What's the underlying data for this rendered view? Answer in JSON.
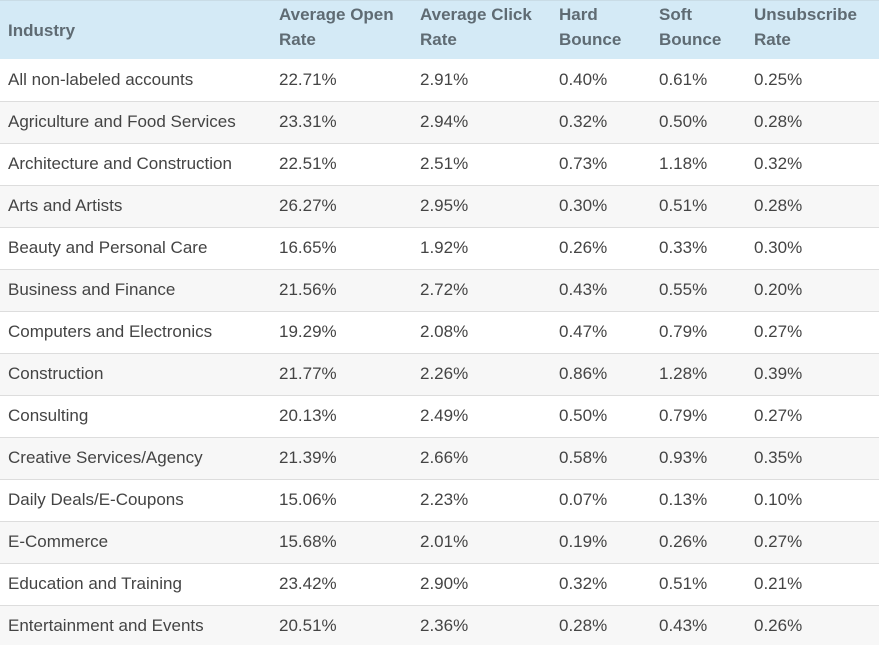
{
  "table": {
    "headers": [
      {
        "line1": "Industry",
        "line2": ""
      },
      {
        "line1": "Average Open",
        "line2": "Rate"
      },
      {
        "line1": "Average Click",
        "line2": "Rate"
      },
      {
        "line1": "Hard",
        "line2": "Bounce"
      },
      {
        "line1": "Soft",
        "line2": "Bounce"
      },
      {
        "line1": "Unsubscribe",
        "line2": "Rate"
      }
    ],
    "rows": [
      [
        "All non-labeled accounts",
        "22.71%",
        "2.91%",
        "0.40%",
        "0.61%",
        "0.25%"
      ],
      [
        "Agriculture and Food Services",
        "23.31%",
        "2.94%",
        "0.32%",
        "0.50%",
        "0.28%"
      ],
      [
        "Architecture and Construction",
        "22.51%",
        "2.51%",
        "0.73%",
        "1.18%",
        "0.32%"
      ],
      [
        "Arts and Artists",
        "26.27%",
        "2.95%",
        "0.30%",
        "0.51%",
        "0.28%"
      ],
      [
        "Beauty and Personal Care",
        "16.65%",
        "1.92%",
        "0.26%",
        "0.33%",
        "0.30%"
      ],
      [
        "Business and Finance",
        "21.56%",
        "2.72%",
        "0.43%",
        "0.55%",
        "0.20%"
      ],
      [
        "Computers and Electronics",
        "19.29%",
        "2.08%",
        "0.47%",
        "0.79%",
        "0.27%"
      ],
      [
        "Construction",
        "21.77%",
        "2.26%",
        "0.86%",
        "1.28%",
        "0.39%"
      ],
      [
        "Consulting",
        "20.13%",
        "2.49%",
        "0.50%",
        "0.79%",
        "0.27%"
      ],
      [
        "Creative Services/Agency",
        "21.39%",
        "2.66%",
        "0.58%",
        "0.93%",
        "0.35%"
      ],
      [
        "Daily Deals/E-Coupons",
        "15.06%",
        "2.23%",
        "0.07%",
        "0.13%",
        "0.10%"
      ],
      [
        "E-Commerce",
        "15.68%",
        "2.01%",
        "0.19%",
        "0.26%",
        "0.27%"
      ],
      [
        "Education and Training",
        "23.42%",
        "2.90%",
        "0.32%",
        "0.51%",
        "0.21%"
      ],
      [
        "Entertainment and Events",
        "20.51%",
        "2.36%",
        "0.28%",
        "0.43%",
        "0.26%"
      ]
    ]
  },
  "colors": {
    "header_bg": "#d4eaf6",
    "header_text": "#5f6b73",
    "body_text": "#444444",
    "row_alt_bg": "#f7f7f7",
    "row_border": "#dddddd"
  }
}
